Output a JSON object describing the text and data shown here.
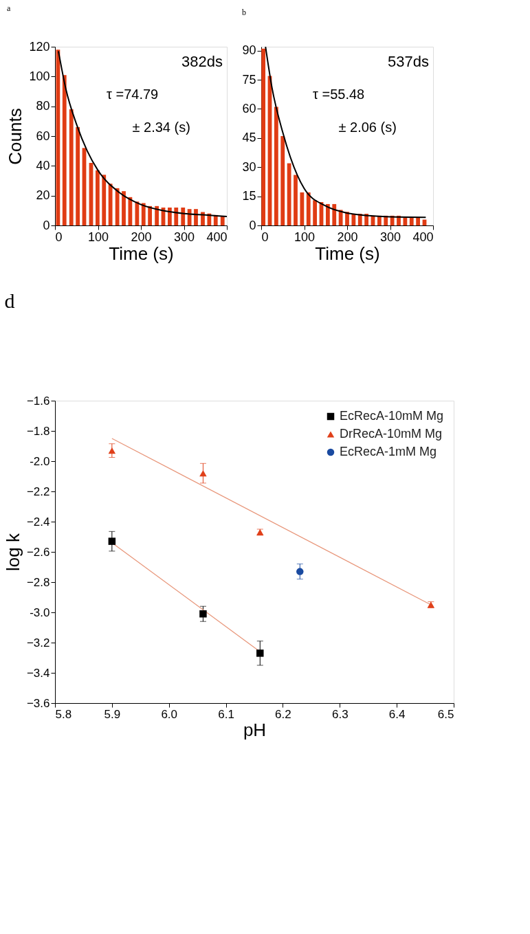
{
  "chart_data": [
    {
      "type": "bar",
      "title": "a",
      "xlabel": "Time (s)",
      "ylabel": "Counts",
      "xlim": [
        0,
        400
      ],
      "xticks": [
        0,
        100,
        200,
        300,
        400
      ],
      "ylim": [
        0,
        120
      ],
      "yticks": [
        0,
        20,
        40,
        60,
        80,
        100,
        120
      ],
      "annotations": [
        "382ds",
        "τ =74.79",
        "± 2.34 (s)"
      ],
      "series": [
        {
          "color": "#e03c14",
          "x": [
            7,
            22,
            38,
            53,
            68,
            84,
            99,
            114,
            129,
            145,
            160,
            175,
            191,
            206,
            221,
            237,
            252,
            267,
            282,
            298,
            313,
            328,
            344,
            359,
            374,
            390
          ],
          "values": [
            118,
            101,
            78,
            66,
            52,
            42,
            37,
            34,
            28,
            25,
            23,
            19,
            16,
            15,
            13,
            13,
            12,
            12,
            12,
            12,
            11,
            11,
            9,
            8,
            7,
            6
          ]
        },
        {
          "type": "line",
          "color": "#000000",
          "x": [
            8,
            25,
            50,
            75,
            100,
            150,
            200,
            250,
            300,
            350,
            400
          ],
          "values": [
            117,
            92,
            68,
            50,
            37,
            22,
            14,
            10,
            8,
            7,
            6
          ]
        }
      ]
    },
    {
      "type": "bar",
      "title": "b",
      "xlabel": "Time (s)",
      "xlim": [
        0,
        400
      ],
      "xticks": [
        0,
        100,
        200,
        300,
        400
      ],
      "ylim": [
        0,
        92
      ],
      "yticks": [
        0,
        15,
        30,
        45,
        60,
        75,
        90
      ],
      "annotations": [
        "537ds",
        "τ =55.48",
        "± 2.06 (s)"
      ],
      "series": [
        {
          "color": "#e03c14",
          "x": [
            5,
            20,
            35,
            50,
            65,
            80,
            95,
            110,
            125,
            140,
            155,
            170,
            185,
            200,
            215,
            230,
            245,
            260,
            275,
            290,
            305,
            320,
            335,
            350,
            365,
            380
          ],
          "values": [
            91,
            77,
            61,
            46,
            32,
            26,
            17,
            17,
            13,
            12,
            11,
            11,
            8,
            7,
            6,
            6,
            6,
            5,
            5,
            5,
            5,
            5,
            4,
            4,
            4,
            3
          ]
        },
        {
          "type": "line",
          "color": "#000000",
          "x": [
            10,
            25,
            50,
            100,
            150,
            200,
            250,
            300,
            383
          ],
          "values": [
            92,
            71,
            48,
            19,
            10,
            6.4,
            5,
            4.4,
            4.2
          ]
        }
      ]
    },
    {
      "type": "scatter",
      "title": "d",
      "xlabel": "pH",
      "ylabel": "log k",
      "legend": "top right",
      "xlim": [
        5.8,
        6.5
      ],
      "xticks": [
        5.8,
        5.9,
        {
          "value": 6.0,
          "label": "6.0"
        },
        6.1,
        6.2,
        6.3,
        6.4,
        6.5
      ],
      "ylim": [
        -3.6,
        -1.6
      ],
      "yticks": [
        -3.6,
        -3.4,
        -3.2,
        {
          "value": -3.0,
          "label": "-3.0"
        },
        -2.8,
        -2.6,
        -2.4,
        -2.2,
        {
          "value": -2.0,
          "label": "-2.0"
        },
        -1.8,
        -1.6
      ],
      "series": [
        {
          "name": "EcRecA-10mM Mg",
          "color": "#000000",
          "marker": "square",
          "x": [
            5.9,
            6.06,
            6.16
          ],
          "values": [
            -2.53,
            -3.01,
            -3.27
          ],
          "errors": [
            0.065,
            0.05,
            0.08
          ]
        },
        {
          "name": "DrRecA-10mM Mg",
          "color": "#e0401a",
          "marker": "triangle",
          "x": [
            5.9,
            6.06,
            6.16,
            6.46
          ],
          "values": [
            -1.93,
            -2.08,
            -2.47,
            -2.95
          ],
          "errors": [
            0.045,
            0.065,
            0.02,
            0.02
          ]
        },
        {
          "name": "EcRecA-1mM Mg",
          "color": "#1a4aa0",
          "marker": "circle",
          "x": [
            6.23
          ],
          "values": [
            -2.73
          ],
          "errors": [
            0.05
          ]
        },
        {
          "type": "line",
          "color": "#e8967a",
          "x": [
            5.9,
            6.46
          ],
          "values": [
            -1.85,
            -2.95
          ]
        },
        {
          "type": "line",
          "color": "#e8967a",
          "x": [
            5.9,
            6.16
          ],
          "values": [
            -2.54,
            -3.26
          ]
        }
      ]
    }
  ]
}
